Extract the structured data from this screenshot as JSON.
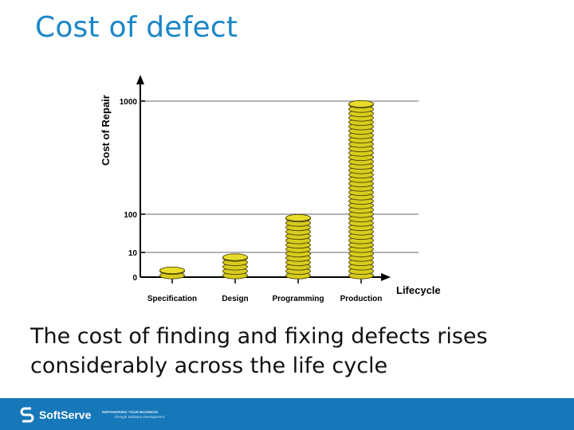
{
  "slide": {
    "title": "Cost of defect",
    "body_text": "The cost of finding and fixing defects rises considerably across the life cycle"
  },
  "footer": {
    "brand": "SoftServe",
    "tagline_line1": "EMPOWERING YOUR BUSINESS",
    "tagline_line2": "through Software Development",
    "background_color": "#1778b9"
  },
  "chart_data": {
    "type": "bar",
    "ylabel": "Cost of Repair",
    "xlabel": "Lifecycle",
    "y_ticks": [
      0,
      10,
      100,
      1000
    ],
    "categories": [
      "Specification",
      "Design",
      "Programming",
      "Production"
    ],
    "values": [
      5,
      10,
      100,
      1000
    ],
    "bar_style": "stacked gold coins",
    "coin_color": "#e8dc2a",
    "grid": true
  }
}
